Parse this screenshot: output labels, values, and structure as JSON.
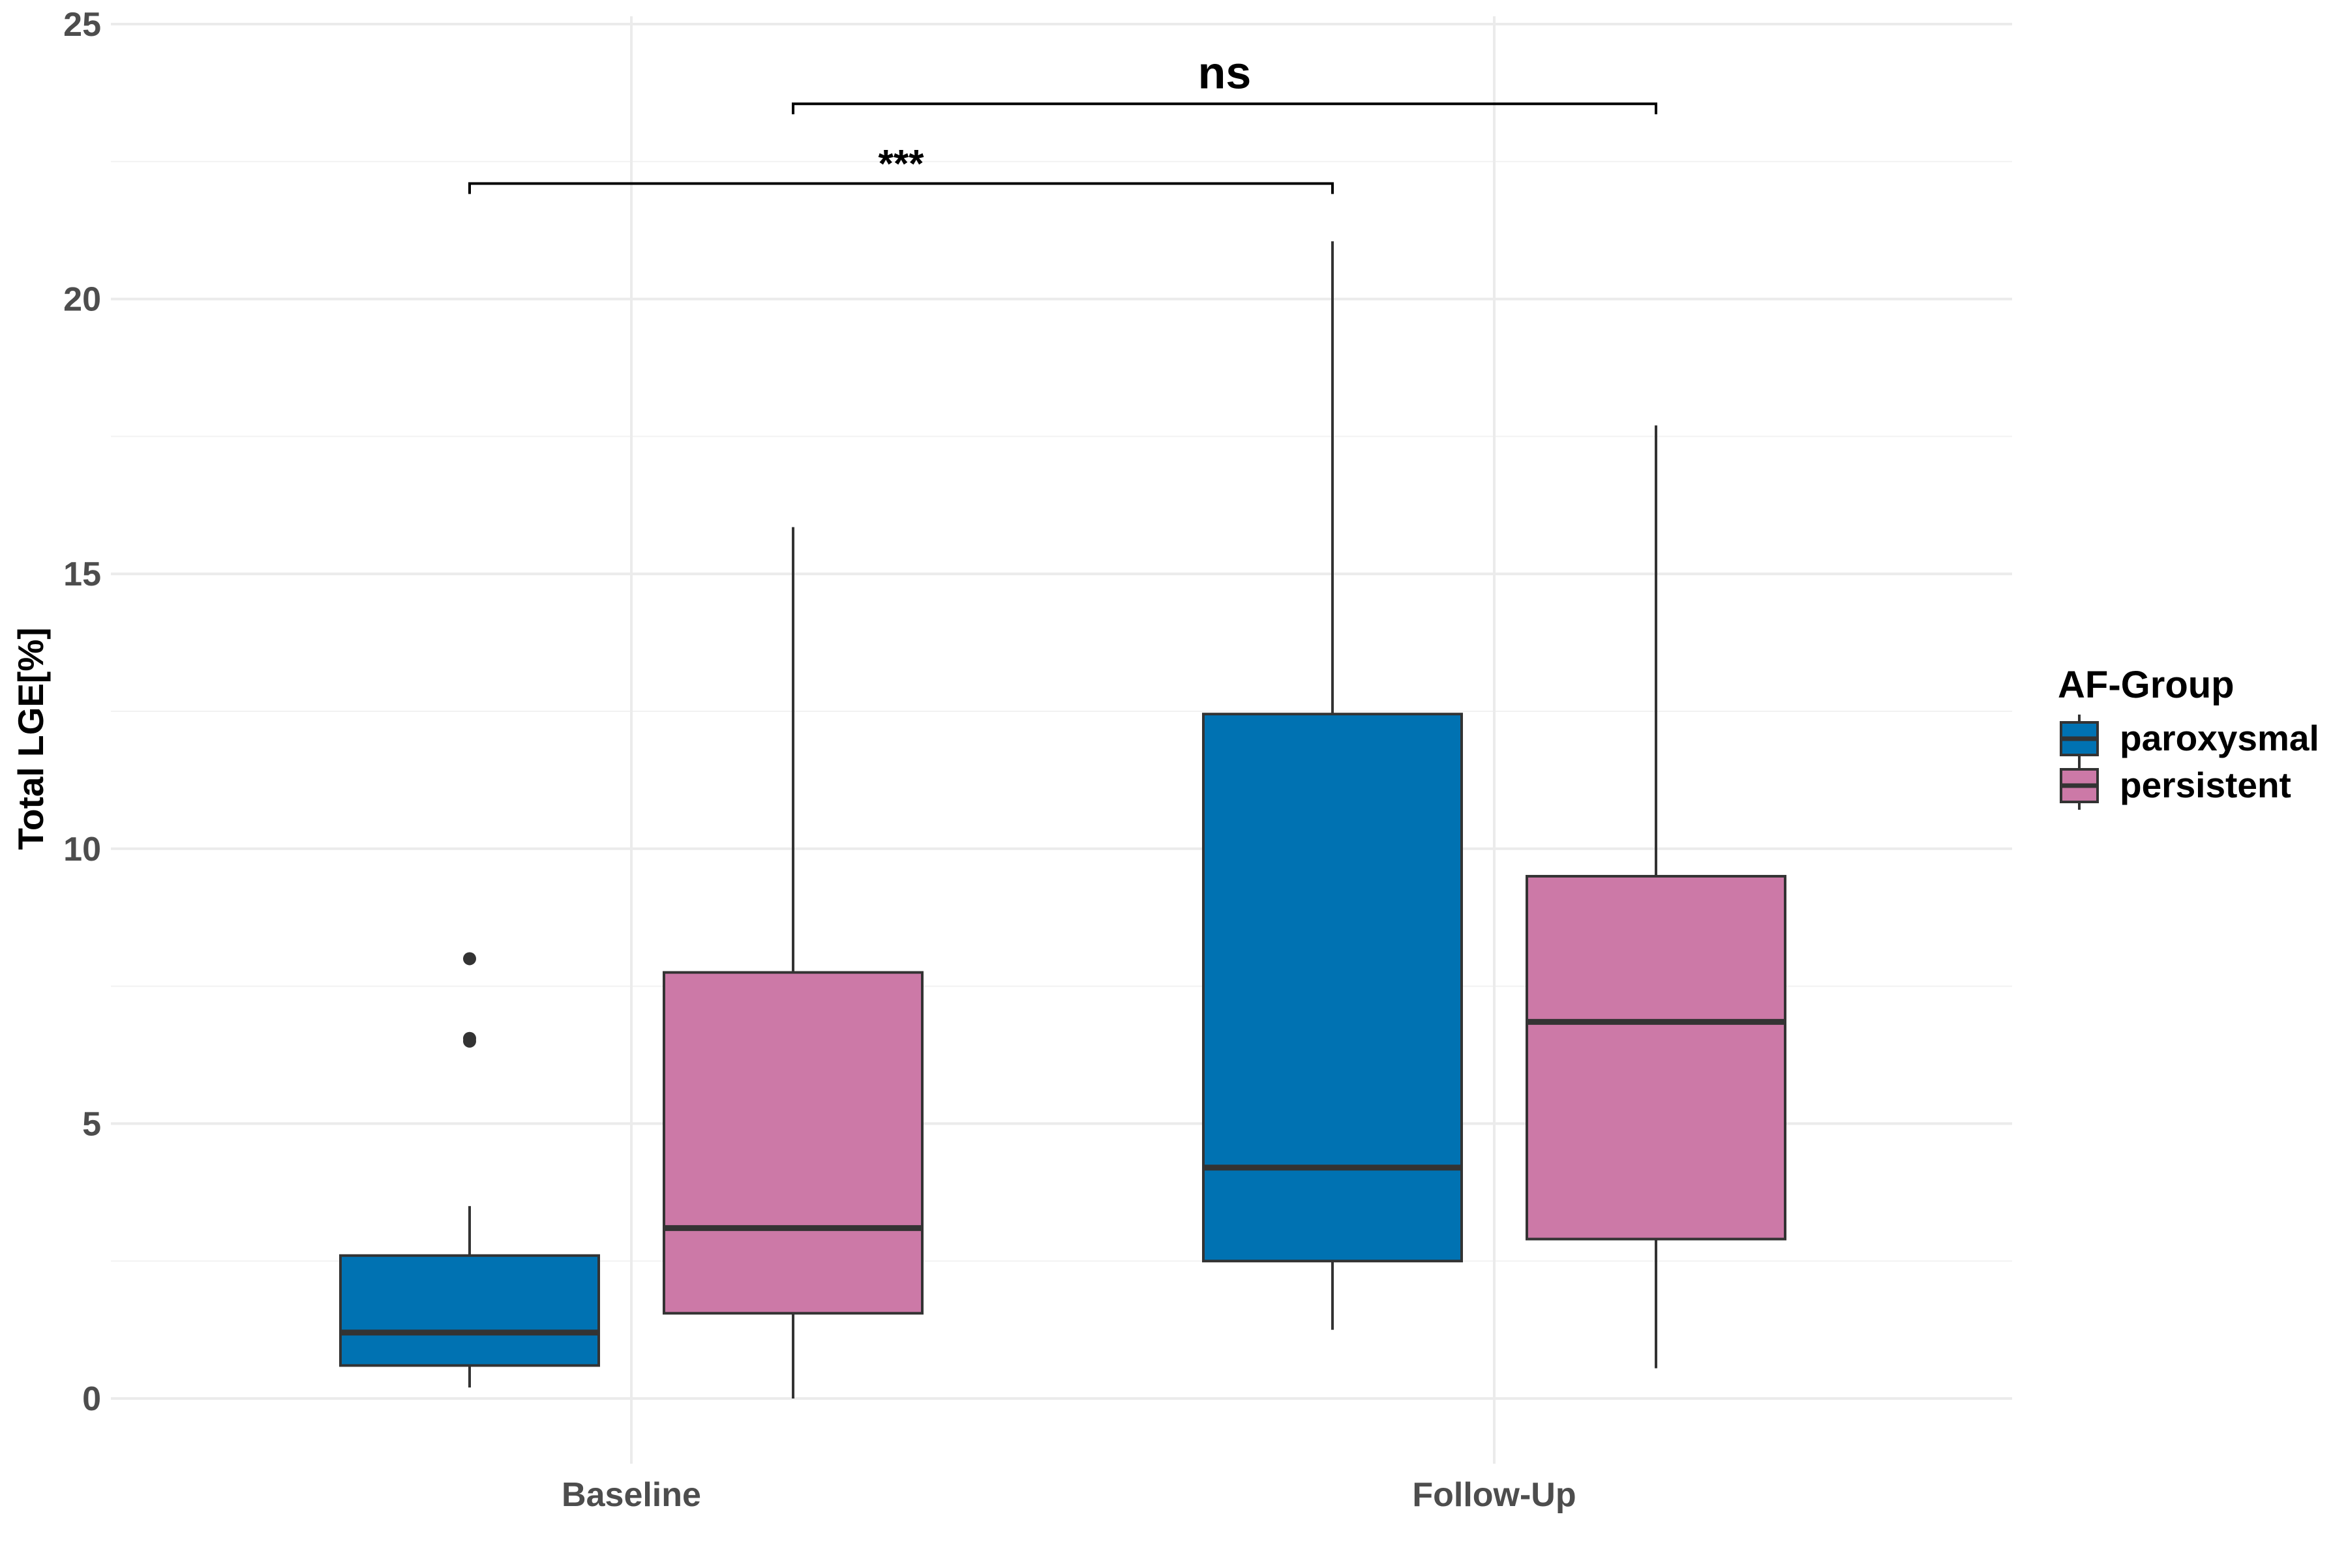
{
  "chart_data": {
    "type": "box",
    "title": "",
    "xlabel": "",
    "ylabel": "Total LGE[%]",
    "ylim": [
      0,
      25
    ],
    "yticks": [
      0,
      5,
      10,
      15,
      20,
      25
    ],
    "categories": [
      "Baseline",
      "Follow-Up"
    ],
    "grid": true,
    "legend": {
      "title": "AF-Group",
      "position": "right"
    },
    "series": [
      {
        "name": "paroxysmal",
        "color": "#0072B2",
        "boxes": [
          {
            "category": "Baseline",
            "whisker_low": 0.2,
            "q1": 0.6,
            "median": 1.2,
            "q3": 2.6,
            "whisker_high": 3.5,
            "outliers": [
              6.5,
              6.55,
              8.0
            ]
          },
          {
            "category": "Follow-Up",
            "whisker_low": 1.25,
            "q1": 2.5,
            "median": 4.2,
            "q3": 12.45,
            "whisker_high": 21.05,
            "outliers": []
          }
        ]
      },
      {
        "name": "persistent",
        "color": "#CC79A7",
        "boxes": [
          {
            "category": "Baseline",
            "whisker_low": 0.0,
            "q1": 1.55,
            "median": 3.1,
            "q3": 7.75,
            "whisker_high": 15.85,
            "outliers": []
          },
          {
            "category": "Follow-Up",
            "whisker_low": 0.55,
            "q1": 2.9,
            "median": 6.85,
            "q3": 9.5,
            "whisker_high": 17.7,
            "outliers": []
          }
        ]
      }
    ],
    "annotations": [
      {
        "label": "***",
        "from": "Baseline / paroxysmal",
        "to": "Follow-Up / paroxysmal",
        "y": 22.1
      },
      {
        "label": "ns",
        "from": "Baseline / persistent",
        "to": "Follow-Up / persistent",
        "y": 23.55
      }
    ]
  }
}
